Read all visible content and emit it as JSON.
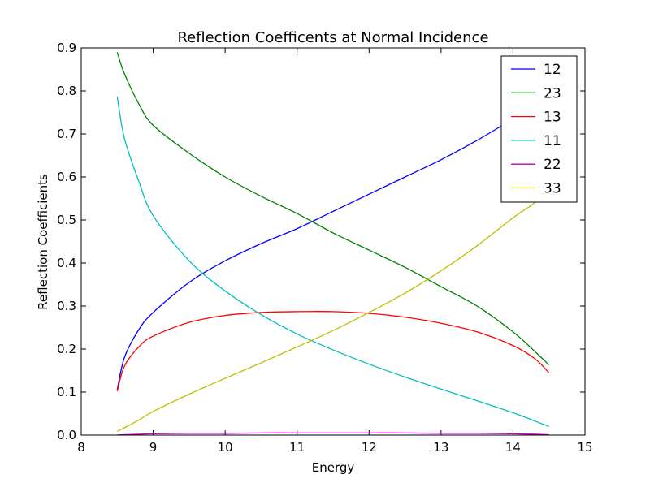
{
  "chart_data": {
    "type": "line",
    "title": "Reflection Coefficents at Normal Incidence",
    "xlabel": "Energy",
    "ylabel": "Reflection Coefficients",
    "xlim": [
      8,
      15
    ],
    "ylim": [
      0,
      0.9
    ],
    "xticks": [
      8,
      9,
      10,
      11,
      12,
      13,
      14,
      15
    ],
    "yticks": [
      0.0,
      0.1,
      0.2,
      0.3,
      0.4,
      0.5,
      0.6,
      0.7,
      0.8,
      0.9
    ],
    "xtick_labels": [
      "8",
      "9",
      "10",
      "11",
      "12",
      "13",
      "14",
      "15"
    ],
    "ytick_labels": [
      "0.0",
      "0.1",
      "0.2",
      "0.3",
      "0.4",
      "0.5",
      "0.6",
      "0.7",
      "0.8",
      "0.9"
    ],
    "grid": false,
    "legend_position": "top-right",
    "x": [
      8.5,
      8.6,
      8.8,
      9.0,
      9.5,
      10.0,
      10.5,
      11.0,
      11.5,
      12.0,
      12.5,
      13.0,
      13.5,
      14.0,
      14.3,
      14.5
    ],
    "series": [
      {
        "name": "12",
        "color": "#0000ff",
        "values": [
          0.105,
          0.18,
          0.245,
          0.285,
          0.355,
          0.405,
          0.445,
          0.48,
          0.52,
          0.56,
          0.6,
          0.64,
          0.685,
          0.735,
          0.765,
          0.785
        ]
      },
      {
        "name": "23",
        "color": "#008000",
        "values": [
          0.89,
          0.84,
          0.77,
          0.72,
          0.655,
          0.6,
          0.555,
          0.515,
          0.47,
          0.43,
          0.39,
          0.345,
          0.3,
          0.24,
          0.195,
          0.163
        ]
      },
      {
        "name": "13",
        "color": "#ff0000",
        "values": [
          0.102,
          0.16,
          0.205,
          0.23,
          0.262,
          0.278,
          0.285,
          0.287,
          0.287,
          0.283,
          0.274,
          0.26,
          0.24,
          0.208,
          0.178,
          0.145
        ]
      },
      {
        "name": "11",
        "color": "#00bfbf",
        "values": [
          0.787,
          0.69,
          0.59,
          0.51,
          0.405,
          0.335,
          0.28,
          0.235,
          0.198,
          0.165,
          0.135,
          0.107,
          0.08,
          0.052,
          0.033,
          0.02
        ]
      },
      {
        "name": "22",
        "color": "#bf00bf",
        "values": [
          0.0,
          0.001,
          0.002,
          0.003,
          0.004,
          0.004,
          0.005,
          0.005,
          0.005,
          0.005,
          0.005,
          0.004,
          0.004,
          0.003,
          0.002,
          0.001
        ]
      },
      {
        "name": "33",
        "color": "#bfbf00",
        "values": [
          0.009,
          0.017,
          0.035,
          0.055,
          0.095,
          0.132,
          0.168,
          0.205,
          0.243,
          0.285,
          0.33,
          0.382,
          0.44,
          0.505,
          0.54,
          0.575
        ]
      }
    ]
  }
}
